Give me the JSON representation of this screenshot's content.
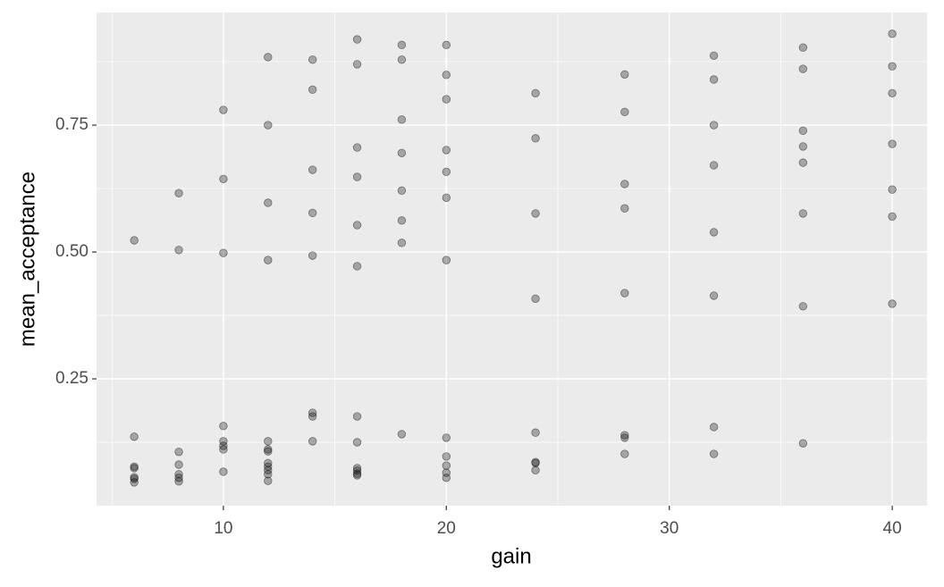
{
  "chart_data": {
    "type": "scatter",
    "xlabel": "gain",
    "ylabel": "mean_acceptance",
    "x": [
      6,
      6,
      6,
      6,
      6,
      6,
      6,
      8,
      8,
      8,
      8,
      8,
      8,
      8,
      10,
      10,
      10,
      10,
      10,
      10,
      10,
      10,
      12,
      12,
      12,
      12,
      12,
      12,
      12,
      12,
      12,
      12,
      12,
      12,
      14,
      14,
      14,
      14,
      14,
      14,
      14,
      14,
      16,
      16,
      16,
      16,
      16,
      16,
      16,
      16,
      16,
      16,
      16,
      16,
      18,
      18,
      18,
      18,
      18,
      18,
      18,
      18,
      20,
      20,
      20,
      20,
      20,
      20,
      20,
      20,
      20,
      20,
      20,
      20,
      24,
      24,
      24,
      24,
      24,
      24,
      24,
      24,
      28,
      28,
      28,
      28,
      28,
      28,
      28,
      28,
      32,
      32,
      32,
      32,
      32,
      32,
      32,
      32,
      36,
      36,
      36,
      36,
      36,
      36,
      36,
      36,
      40,
      40,
      40,
      40,
      40,
      40,
      40
    ],
    "y": [
      0.523,
      0.136,
      0.077,
      0.074,
      0.056,
      0.053,
      0.046,
      0.616,
      0.504,
      0.106,
      0.081,
      0.062,
      0.055,
      0.048,
      0.78,
      0.644,
      0.498,
      0.157,
      0.127,
      0.118,
      0.111,
      0.067,
      0.884,
      0.75,
      0.597,
      0.484,
      0.127,
      0.111,
      0.107,
      0.084,
      0.077,
      0.07,
      0.062,
      0.049,
      0.879,
      0.82,
      0.662,
      0.577,
      0.493,
      0.183,
      0.176,
      0.127,
      0.919,
      0.87,
      0.706,
      0.648,
      0.553,
      0.472,
      0.176,
      0.125,
      0.074,
      0.069,
      0.063,
      0.06,
      0.908,
      0.879,
      0.761,
      0.695,
      0.621,
      0.562,
      0.518,
      0.141,
      0.908,
      0.849,
      0.801,
      0.701,
      0.658,
      0.607,
      0.484,
      0.134,
      0.097,
      0.079,
      0.065,
      0.055,
      0.813,
      0.724,
      0.576,
      0.408,
      0.144,
      0.086,
      0.084,
      0.07,
      0.85,
      0.776,
      0.634,
      0.586,
      0.419,
      0.139,
      0.134,
      0.102,
      0.887,
      0.84,
      0.75,
      0.671,
      0.539,
      0.414,
      0.155,
      0.102,
      0.903,
      0.861,
      0.739,
      0.708,
      0.676,
      0.576,
      0.393,
      0.123,
      0.93,
      0.866,
      0.813,
      0.713,
      0.623,
      0.57,
      0.398
    ],
    "color": "#000000",
    "xlim": [
      4.31,
      41.56
    ],
    "xticks": [
      10,
      20,
      30,
      40
    ],
    "ylim": [
      0.0,
      0.972
    ],
    "yticks": [
      {
        "value": 0.25,
        "label": "0.25"
      },
      {
        "value": 0.5,
        "label": "0.50"
      },
      {
        "value": 0.75,
        "label": "0.75"
      }
    ],
    "grid": true
  }
}
